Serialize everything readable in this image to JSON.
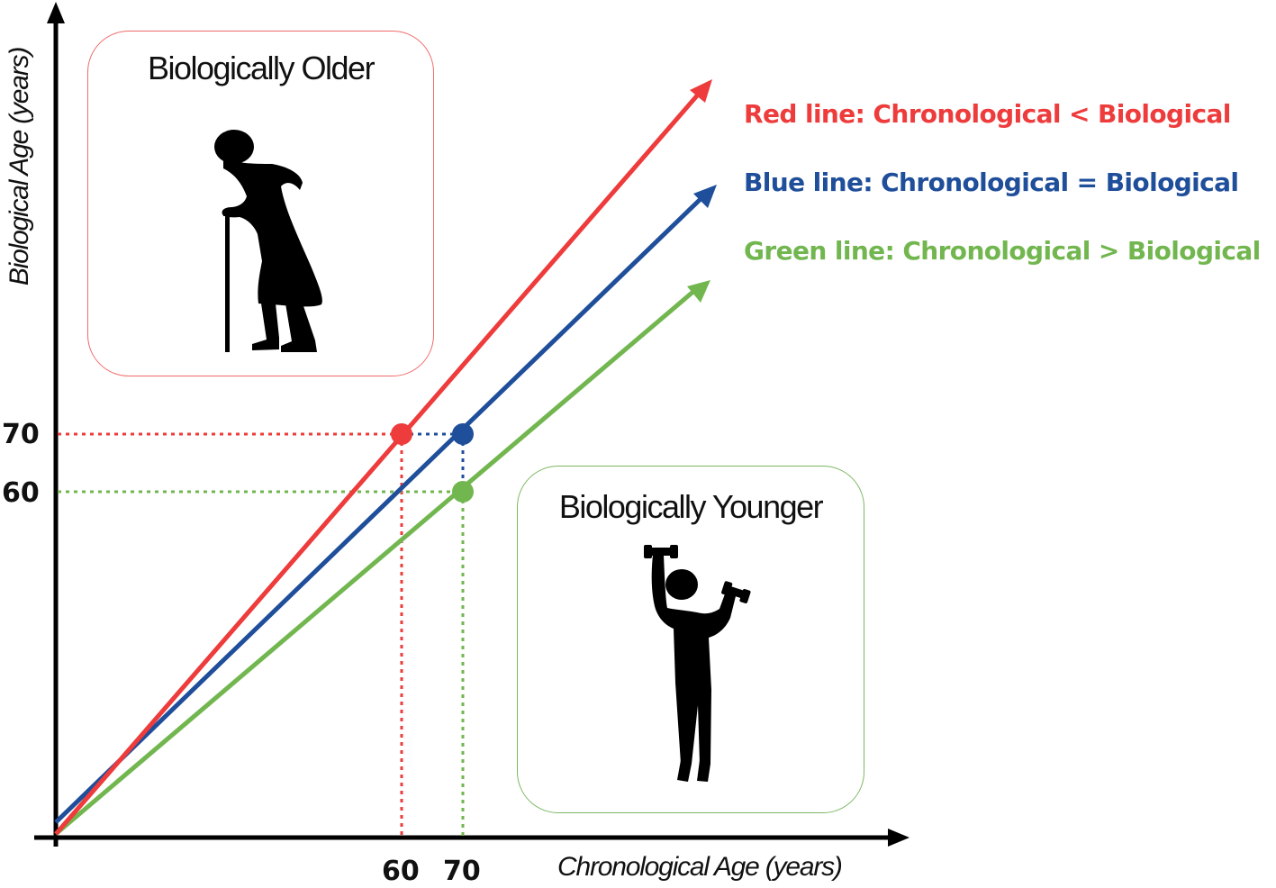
{
  "boxes": {
    "older": {
      "title": "Biologically Older",
      "border_color": "#ef6a6a",
      "icon": "elderly-person-with-cane-icon"
    },
    "younger": {
      "title": "Biologically Younger",
      "border_color": "#7cb763",
      "icon": "person-lifting-dumbbells-icon"
    }
  },
  "legend": {
    "red": {
      "text": "Red line: Chronological < Biological",
      "color": "#ee3b3b"
    },
    "blue": {
      "text": "Blue line: Chronological = Biological",
      "color": "#1f4e9a"
    },
    "green": {
      "text": "Green line: Chronological > Biological",
      "color": "#72b64f"
    }
  },
  "axes": {
    "x_title": "Chronological Age (years)",
    "y_title": "Biological Age (years)",
    "x_ticks": [
      "60",
      "70"
    ],
    "y_ticks": [
      "70",
      "60"
    ]
  },
  "markers": [
    {
      "series": "red",
      "chronological": 60,
      "biological": 70
    },
    {
      "series": "blue",
      "chronological": 70,
      "biological": 70
    },
    {
      "series": "green",
      "chronological": 70,
      "biological": 60
    }
  ],
  "colors": {
    "axis": "#000000",
    "red": "#ee3b3b",
    "blue": "#1f4e9a",
    "green": "#72b64f"
  }
}
